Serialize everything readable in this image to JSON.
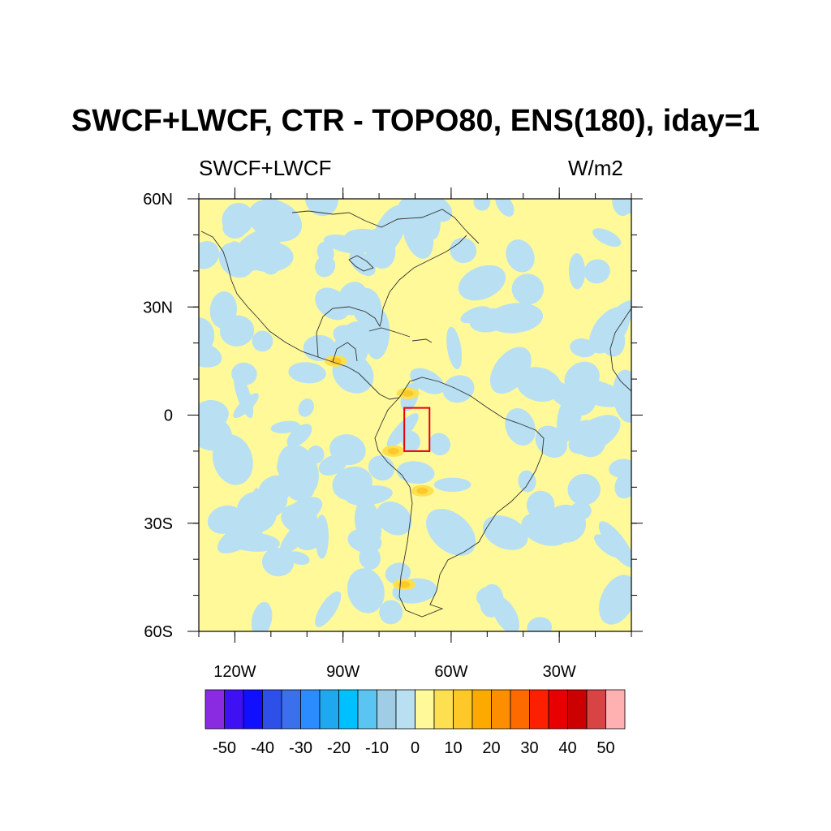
{
  "figure": {
    "title": "SWCF+LWCF, CTR - TOPO80, ENS(180), iday=1",
    "left_string": "SWCF+LWCF",
    "right_string": "W/m2"
  },
  "map": {
    "lon_range": [
      -130,
      -10
    ],
    "lat_range": [
      -60,
      60
    ],
    "lat_ticks": [
      {
        "value": 60,
        "label": "60N"
      },
      {
        "value": 30,
        "label": "30N"
      },
      {
        "value": 0,
        "label": "0"
      },
      {
        "value": -30,
        "label": "30S"
      },
      {
        "value": -60,
        "label": "60S"
      }
    ],
    "lon_ticks": [
      {
        "value": -120,
        "label": "120W"
      },
      {
        "value": -90,
        "label": "90W"
      },
      {
        "value": -60,
        "label": "60W"
      },
      {
        "value": -30,
        "label": "30W"
      }
    ],
    "box": {
      "lon_min": -73,
      "lon_max": -66,
      "lat_min": -10,
      "lat_max": 2,
      "color": "#e8000b"
    },
    "positive_features": [
      {
        "name": "central-america",
        "lon": -92,
        "lat": 15,
        "level": 10
      },
      {
        "name": "northern-andes",
        "lon": -72,
        "lat": 6,
        "level": 10
      },
      {
        "name": "peru-andes",
        "lon": -76,
        "lat": -10,
        "level": 10
      },
      {
        "name": "bolivia-andes",
        "lon": -68,
        "lat": -21,
        "level": 10
      },
      {
        "name": "patagonia",
        "lon": -73,
        "lat": -47,
        "level": 10
      }
    ]
  },
  "colorbar": {
    "labels": [
      "-50",
      "-40",
      "-30",
      "-20",
      "-10",
      "0",
      "10",
      "20",
      "30",
      "40",
      "50"
    ],
    "colors": [
      "#8a2be2",
      "#4010f5",
      "#1010ff",
      "#2f50e8",
      "#3a70ec",
      "#2a8cff",
      "#1ea8f0",
      "#00c0ff",
      "#5ac4f2",
      "#a0cde6",
      "#b8e0f2",
      "#fff99a",
      "#fde050",
      "#fdc828",
      "#fdaa00",
      "#fd8e00",
      "#fd6a00",
      "#fd2000",
      "#e80000",
      "#cc0000",
      "#d84444",
      "#ffb0b0"
    ]
  }
}
